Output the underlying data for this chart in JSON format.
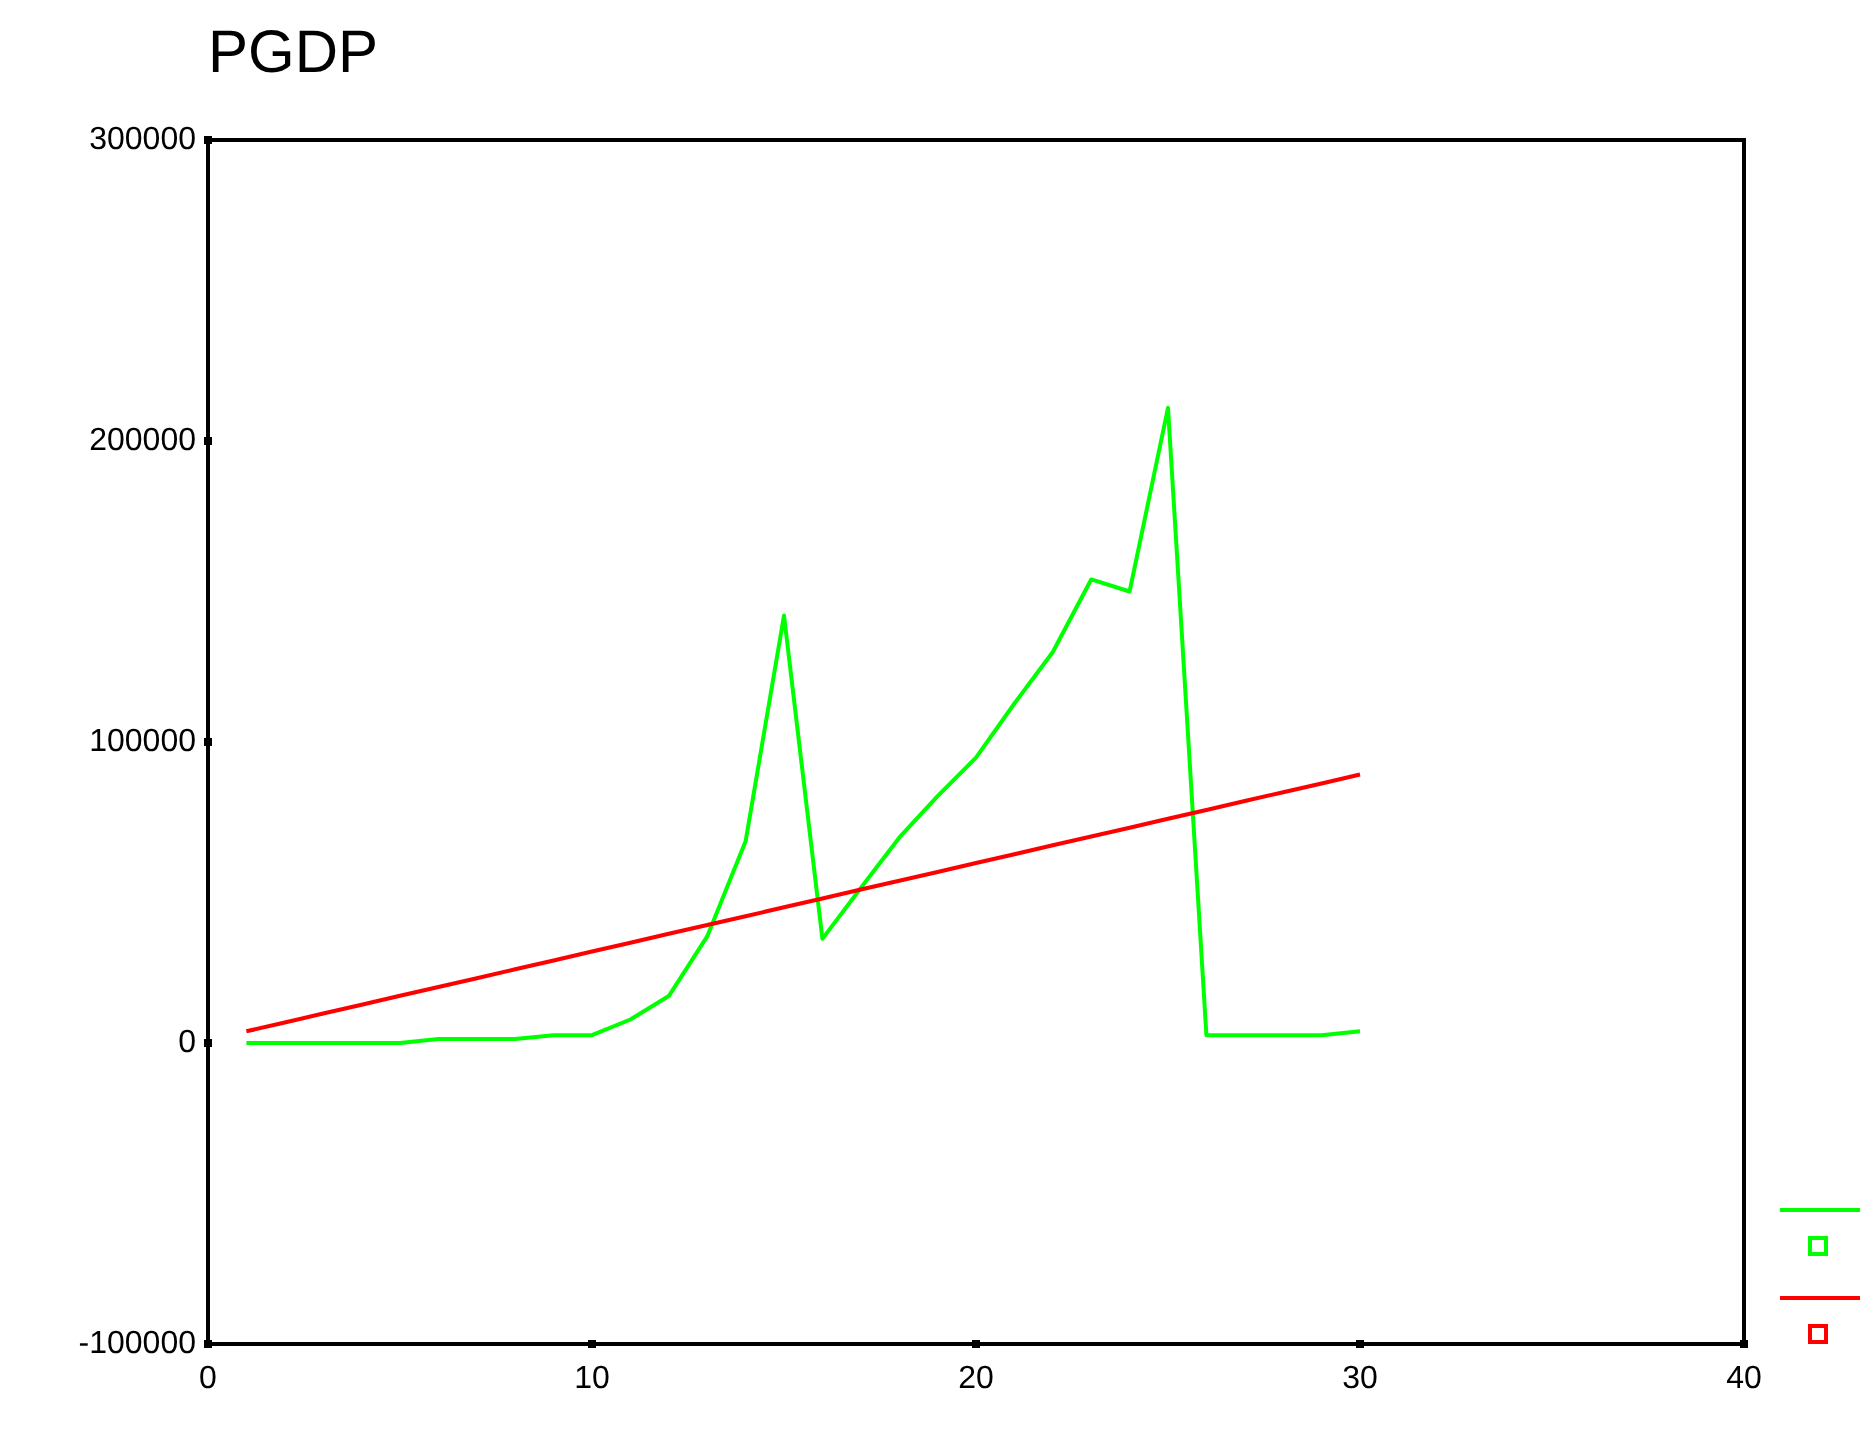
{
  "chart_data": {
    "type": "line",
    "title": "PGDP",
    "x": [
      1,
      2,
      3,
      4,
      5,
      6,
      7,
      8,
      9,
      10,
      11,
      12,
      13,
      14,
      15,
      16,
      17,
      18,
      19,
      20,
      21,
      22,
      23,
      24,
      25,
      26,
      27,
      28,
      29,
      30
    ],
    "series": [
      {
        "color": "#00ff00",
        "values": [
          0,
          0,
          0,
          0,
          0,
          1300,
          1300,
          1300,
          2600,
          2600,
          7800,
          15600,
          35400,
          67000,
          142000,
          34600,
          51500,
          68200,
          82000,
          94800,
          112800,
          129900,
          154000,
          150000,
          211000,
          2600,
          2600,
          2600,
          2600,
          3900
        ]
      },
      {
        "color": "#ff0000",
        "values": [
          3900,
          6800,
          9800,
          12700,
          15700,
          18600,
          21500,
          24500,
          27400,
          30400,
          33300,
          36300,
          39200,
          42100,
          45100,
          48000,
          51000,
          53900,
          56800,
          59800,
          62700,
          65700,
          68600,
          71500,
          74500,
          77400,
          80400,
          83300,
          86200,
          89200
        ]
      }
    ],
    "xlim": [
      0,
      40
    ],
    "xticks": [
      0,
      10,
      20,
      30,
      40
    ],
    "ylim": [
      -100000,
      300000
    ],
    "yticks": [
      -100000,
      0,
      100000,
      200000,
      300000
    ],
    "grid": false,
    "marker": "none",
    "line_style": "solid"
  }
}
